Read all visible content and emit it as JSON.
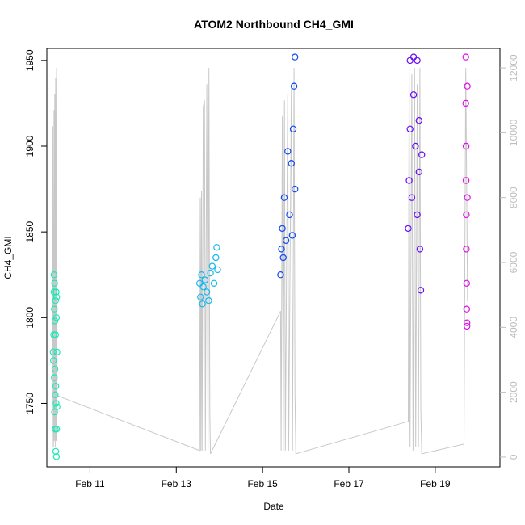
{
  "chart_data": {
    "type": "scatter",
    "title": "ATOM2 Northbound CH4_GMI",
    "xlabel": "Date",
    "ylabel": "CH4_GMI",
    "x_range": [
      "2016-02-10T00:00",
      "2016-02-20T12:00"
    ],
    "x_ticks": [
      {
        "date": "2016-02-11T00:00",
        "label": "Feb 11"
      },
      {
        "date": "2016-02-13T00:00",
        "label": "Feb 13"
      },
      {
        "date": "2016-02-15T00:00",
        "label": "Feb 15"
      },
      {
        "date": "2016-02-17T00:00",
        "label": "Feb 17"
      },
      {
        "date": "2016-02-19T00:00",
        "label": "Feb 19"
      }
    ],
    "ylim": [
      1713,
      1957
    ],
    "y_ticks": [
      1750,
      1800,
      1850,
      1900,
      1950
    ],
    "y2lim": [
      -300,
      12600
    ],
    "y2_ticks": [
      0,
      2000,
      4000,
      6000,
      8000,
      10000,
      12000
    ],
    "grid": false,
    "legend": "none",
    "altitude_line_color": "#c8c8c8",
    "series": [
      {
        "color": "#1de9b6",
        "points": [
          {
            "x": "2016-02-10T03:30",
            "y": 1780
          },
          {
            "x": "2016-02-10T03:40",
            "y": 1775
          },
          {
            "x": "2016-02-10T03:50",
            "y": 1790
          },
          {
            "x": "2016-02-10T04:00",
            "y": 1815
          },
          {
            "x": "2016-02-10T04:00",
            "y": 1825
          },
          {
            "x": "2016-02-10T04:10",
            "y": 1805
          },
          {
            "x": "2016-02-10T04:10",
            "y": 1765
          },
          {
            "x": "2016-02-10T04:20",
            "y": 1745
          },
          {
            "x": "2016-02-10T04:20",
            "y": 1820
          },
          {
            "x": "2016-02-10T04:30",
            "y": 1798
          },
          {
            "x": "2016-02-10T04:30",
            "y": 1770
          },
          {
            "x": "2016-02-10T04:40",
            "y": 1755
          },
          {
            "x": "2016-02-10T04:40",
            "y": 1735
          },
          {
            "x": "2016-02-10T04:50",
            "y": 1810
          },
          {
            "x": "2016-02-10T04:50",
            "y": 1790
          },
          {
            "x": "2016-02-10T05:00",
            "y": 1760
          },
          {
            "x": "2016-02-10T05:00",
            "y": 1722
          },
          {
            "x": "2016-02-10T05:10",
            "y": 1815
          },
          {
            "x": "2016-02-10T05:10",
            "y": 1750
          },
          {
            "x": "2016-02-10T05:20",
            "y": 1719
          },
          {
            "x": "2016-02-10T05:20",
            "y": 1800
          },
          {
            "x": "2016-02-10T05:30",
            "y": 1735
          },
          {
            "x": "2016-02-10T05:30",
            "y": 1812
          },
          {
            "x": "2016-02-10T05:40",
            "y": 1780
          },
          {
            "x": "2016-02-10T05:40",
            "y": 1748
          }
        ]
      },
      {
        "color": "#18b8ee",
        "points": [
          {
            "x": "2016-02-13T13:00",
            "y": 1820
          },
          {
            "x": "2016-02-13T13:30",
            "y": 1812
          },
          {
            "x": "2016-02-13T14:00",
            "y": 1825
          },
          {
            "x": "2016-02-13T14:30",
            "y": 1808
          },
          {
            "x": "2016-02-13T15:00",
            "y": 1818
          },
          {
            "x": "2016-02-13T16:00",
            "y": 1822
          },
          {
            "x": "2016-02-13T17:00",
            "y": 1815
          },
          {
            "x": "2016-02-13T18:00",
            "y": 1810
          },
          {
            "x": "2016-02-13T19:00",
            "y": 1826
          },
          {
            "x": "2016-02-13T20:00",
            "y": 1830
          },
          {
            "x": "2016-02-13T21:00",
            "y": 1820
          },
          {
            "x": "2016-02-13T22:00",
            "y": 1835
          },
          {
            "x": "2016-02-13T22:30",
            "y": 1841
          },
          {
            "x": "2016-02-13T23:00",
            "y": 1828
          }
        ]
      },
      {
        "color": "#1048f4",
        "points": [
          {
            "x": "2016-02-15T10:00",
            "y": 1825
          },
          {
            "x": "2016-02-15T10:30",
            "y": 1840
          },
          {
            "x": "2016-02-15T11:00",
            "y": 1852
          },
          {
            "x": "2016-02-15T11:30",
            "y": 1835
          },
          {
            "x": "2016-02-15T12:00",
            "y": 1870
          },
          {
            "x": "2016-02-15T13:00",
            "y": 1845
          },
          {
            "x": "2016-02-15T14:00",
            "y": 1897
          },
          {
            "x": "2016-02-15T15:00",
            "y": 1860
          },
          {
            "x": "2016-02-15T16:00",
            "y": 1890
          },
          {
            "x": "2016-02-15T16:30",
            "y": 1848
          },
          {
            "x": "2016-02-15T17:00",
            "y": 1910
          },
          {
            "x": "2016-02-15T17:30",
            "y": 1935
          },
          {
            "x": "2016-02-15T18:00",
            "y": 1952
          },
          {
            "x": "2016-02-15T18:00",
            "y": 1875
          }
        ]
      },
      {
        "color": "#6a0cf6",
        "points": [
          {
            "x": "2016-02-18T09:00",
            "y": 1852
          },
          {
            "x": "2016-02-18T09:30",
            "y": 1880
          },
          {
            "x": "2016-02-18T10:00",
            "y": 1910
          },
          {
            "x": "2016-02-18T10:00",
            "y": 1950
          },
          {
            "x": "2016-02-18T11:00",
            "y": 1870
          },
          {
            "x": "2016-02-18T12:00",
            "y": 1930
          },
          {
            "x": "2016-02-18T12:00",
            "y": 1952
          },
          {
            "x": "2016-02-18T13:00",
            "y": 1900
          },
          {
            "x": "2016-02-18T14:00",
            "y": 1860
          },
          {
            "x": "2016-02-18T14:00",
            "y": 1950
          },
          {
            "x": "2016-02-18T15:00",
            "y": 1915
          },
          {
            "x": "2016-02-18T15:00",
            "y": 1885
          },
          {
            "x": "2016-02-18T15:30",
            "y": 1840
          },
          {
            "x": "2016-02-18T16:00",
            "y": 1816
          },
          {
            "x": "2016-02-18T16:30",
            "y": 1895
          }
        ]
      },
      {
        "color": "#e10ee8",
        "points": [
          {
            "x": "2016-02-19T17:00",
            "y": 1952
          },
          {
            "x": "2016-02-19T17:00",
            "y": 1925
          },
          {
            "x": "2016-02-19T17:10",
            "y": 1900
          },
          {
            "x": "2016-02-19T17:10",
            "y": 1880
          },
          {
            "x": "2016-02-19T17:20",
            "y": 1860
          },
          {
            "x": "2016-02-19T17:20",
            "y": 1840
          },
          {
            "x": "2016-02-19T17:30",
            "y": 1820
          },
          {
            "x": "2016-02-19T17:30",
            "y": 1805
          },
          {
            "x": "2016-02-19T17:40",
            "y": 1795
          },
          {
            "x": "2016-02-19T17:40",
            "y": 1797
          },
          {
            "x": "2016-02-19T17:50",
            "y": 1935
          },
          {
            "x": "2016-02-19T17:50",
            "y": 1870
          }
        ]
      }
    ],
    "altitude_track": [
      {
        "x": "2016-02-10T03:00",
        "y2": 0
      },
      {
        "x": "2016-02-10T03:20",
        "y2": 10200
      },
      {
        "x": "2016-02-10T03:40",
        "y2": 300
      },
      {
        "x": "2016-02-10T04:00",
        "y2": 10700
      },
      {
        "x": "2016-02-10T04:10",
        "y2": 500
      },
      {
        "x": "2016-02-10T04:25",
        "y2": 11200
      },
      {
        "x": "2016-02-10T04:40",
        "y2": 300
      },
      {
        "x": "2016-02-10T04:55",
        "y2": 11700
      },
      {
        "x": "2016-02-10T05:10",
        "y2": 500
      },
      {
        "x": "2016-02-10T05:25",
        "y2": 12000
      },
      {
        "x": "2016-02-10T05:40",
        "y2": 1900
      },
      {
        "x": "2016-02-13T13:00",
        "y2": 200
      },
      {
        "x": "2016-02-13T13:20",
        "y2": 8000
      },
      {
        "x": "2016-02-13T13:40",
        "y2": 200
      },
      {
        "x": "2016-02-13T14:00",
        "y2": 8200
      },
      {
        "x": "2016-02-13T14:20",
        "y2": 200
      },
      {
        "x": "2016-02-13T15:00",
        "y2": 10800
      },
      {
        "x": "2016-02-13T15:40",
        "y2": 11000
      },
      {
        "x": "2016-02-13T16:10",
        "y2": 200
      },
      {
        "x": "2016-02-13T17:00",
        "y2": 11500
      },
      {
        "x": "2016-02-13T17:40",
        "y2": 200
      },
      {
        "x": "2016-02-13T18:10",
        "y2": 12000
      },
      {
        "x": "2016-02-13T18:40",
        "y2": 1300
      },
      {
        "x": "2016-02-13T19:00",
        "y2": 100
      },
      {
        "x": "2016-02-15T10:00",
        "y2": 4500
      },
      {
        "x": "2016-02-15T10:20",
        "y2": 200
      },
      {
        "x": "2016-02-15T11:00",
        "y2": 10500
      },
      {
        "x": "2016-02-15T11:30",
        "y2": 200
      },
      {
        "x": "2016-02-15T12:10",
        "y2": 11000
      },
      {
        "x": "2016-02-15T12:40",
        "y2": 200
      },
      {
        "x": "2016-02-15T14:00",
        "y2": 11200
      },
      {
        "x": "2016-02-15T14:30",
        "y2": 200
      },
      {
        "x": "2016-02-15T16:00",
        "y2": 11500
      },
      {
        "x": "2016-02-15T16:40",
        "y2": 200
      },
      {
        "x": "2016-02-15T17:30",
        "y2": 12000
      },
      {
        "x": "2016-02-15T18:00",
        "y2": 2000
      },
      {
        "x": "2016-02-15T18:30",
        "y2": 100
      },
      {
        "x": "2016-02-18T09:00",
        "y2": 1100
      },
      {
        "x": "2016-02-18T09:30",
        "y2": 12000
      },
      {
        "x": "2016-02-18T10:00",
        "y2": 300
      },
      {
        "x": "2016-02-18T11:00",
        "y2": 11800
      },
      {
        "x": "2016-02-18T11:40",
        "y2": 200
      },
      {
        "x": "2016-02-18T12:30",
        "y2": 12000
      },
      {
        "x": "2016-02-18T13:10",
        "y2": 300
      },
      {
        "x": "2016-02-18T14:00",
        "y2": 11500
      },
      {
        "x": "2016-02-18T14:40",
        "y2": 300
      },
      {
        "x": "2016-02-18T15:30",
        "y2": 12000
      },
      {
        "x": "2016-02-18T16:00",
        "y2": 1500
      },
      {
        "x": "2016-02-18T16:30",
        "y2": 100
      },
      {
        "x": "2016-02-19T16:00",
        "y2": 400
      },
      {
        "x": "2016-02-19T17:00",
        "y2": 12000
      },
      {
        "x": "2016-02-19T18:00",
        "y2": 4800
      }
    ]
  }
}
